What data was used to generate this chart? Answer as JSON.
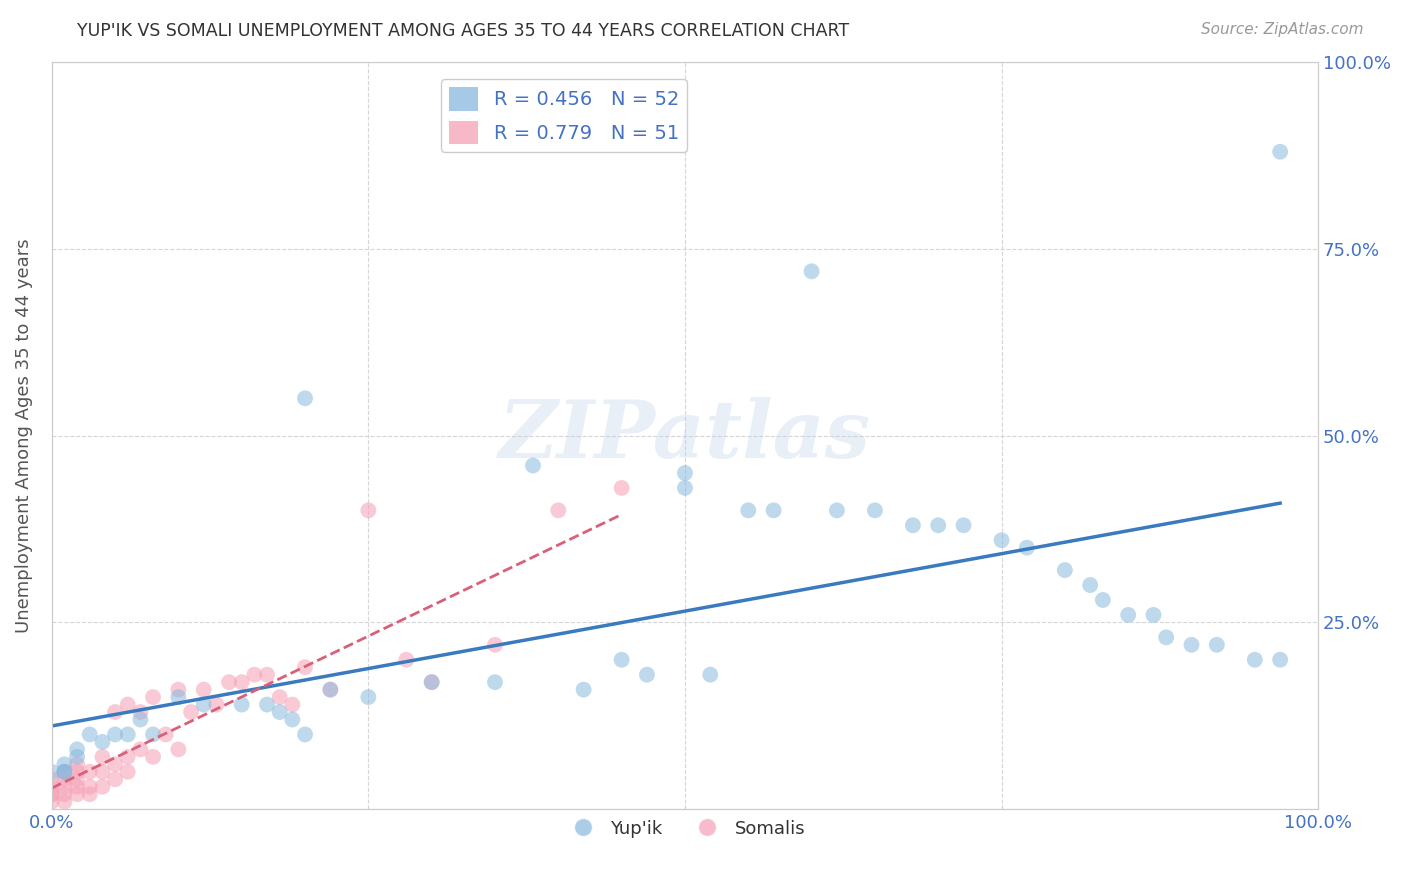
{
  "title": "YUP'IK VS SOMALI UNEMPLOYMENT AMONG AGES 35 TO 44 YEARS CORRELATION CHART",
  "source": "Source: ZipAtlas.com",
  "ylabel": "Unemployment Among Ages 35 to 44 years",
  "xlim": [
    0.0,
    1.0
  ],
  "ylim": [
    0.0,
    1.0
  ],
  "blue_color": "#89b8de",
  "pink_color": "#f5a0b5",
  "blue_line_color": "#3a7abf",
  "pink_line_color": "#d9607a",
  "legend_blue_label": "R = 0.456   N = 52",
  "legend_pink_label": "R = 0.779   N = 51",
  "tick_color": "#4472c4",
  "watermark_text": "ZIPatlas",
  "yupik_x": [
    0.97,
    0.6,
    0.2,
    0.38,
    0.5,
    0.5,
    0.55,
    0.57,
    0.62,
    0.65,
    0.68,
    0.7,
    0.72,
    0.75,
    0.77,
    0.8,
    0.82,
    0.83,
    0.85,
    0.87,
    0.88,
    0.9,
    0.92,
    0.95,
    0.97,
    0.45,
    0.47,
    0.52,
    0.3,
    0.35,
    0.42,
    0.22,
    0.25,
    0.1,
    0.12,
    0.15,
    0.17,
    0.18,
    0.19,
    0.07,
    0.08,
    0.05,
    0.06,
    0.03,
    0.04,
    0.02,
    0.02,
    0.01,
    0.01,
    0.01,
    0.0,
    0.2
  ],
  "yupik_y": [
    0.88,
    0.72,
    0.55,
    0.46,
    0.45,
    0.43,
    0.4,
    0.4,
    0.4,
    0.4,
    0.38,
    0.38,
    0.38,
    0.36,
    0.35,
    0.32,
    0.3,
    0.28,
    0.26,
    0.26,
    0.23,
    0.22,
    0.22,
    0.2,
    0.2,
    0.2,
    0.18,
    0.18,
    0.17,
    0.17,
    0.16,
    0.16,
    0.15,
    0.15,
    0.14,
    0.14,
    0.14,
    0.13,
    0.12,
    0.12,
    0.1,
    0.1,
    0.1,
    0.1,
    0.09,
    0.08,
    0.07,
    0.06,
    0.05,
    0.05,
    0.05,
    0.1
  ],
  "somali_x": [
    0.0,
    0.0,
    0.0,
    0.0,
    0.0,
    0.01,
    0.01,
    0.01,
    0.01,
    0.01,
    0.02,
    0.02,
    0.02,
    0.02,
    0.02,
    0.03,
    0.03,
    0.03,
    0.04,
    0.04,
    0.04,
    0.05,
    0.05,
    0.05,
    0.06,
    0.06,
    0.06,
    0.07,
    0.07,
    0.08,
    0.08,
    0.09,
    0.1,
    0.1,
    0.11,
    0.12,
    0.13,
    0.14,
    0.15,
    0.16,
    0.17,
    0.18,
    0.19,
    0.2,
    0.22,
    0.25,
    0.28,
    0.3,
    0.35,
    0.4,
    0.45
  ],
  "somali_y": [
    0.01,
    0.02,
    0.02,
    0.03,
    0.04,
    0.01,
    0.02,
    0.03,
    0.04,
    0.05,
    0.02,
    0.03,
    0.04,
    0.05,
    0.06,
    0.02,
    0.03,
    0.05,
    0.03,
    0.05,
    0.07,
    0.04,
    0.06,
    0.13,
    0.05,
    0.07,
    0.14,
    0.08,
    0.13,
    0.07,
    0.15,
    0.1,
    0.08,
    0.16,
    0.13,
    0.16,
    0.14,
    0.17,
    0.17,
    0.18,
    0.18,
    0.15,
    0.14,
    0.19,
    0.16,
    0.4,
    0.2,
    0.17,
    0.22,
    0.4,
    0.43
  ]
}
